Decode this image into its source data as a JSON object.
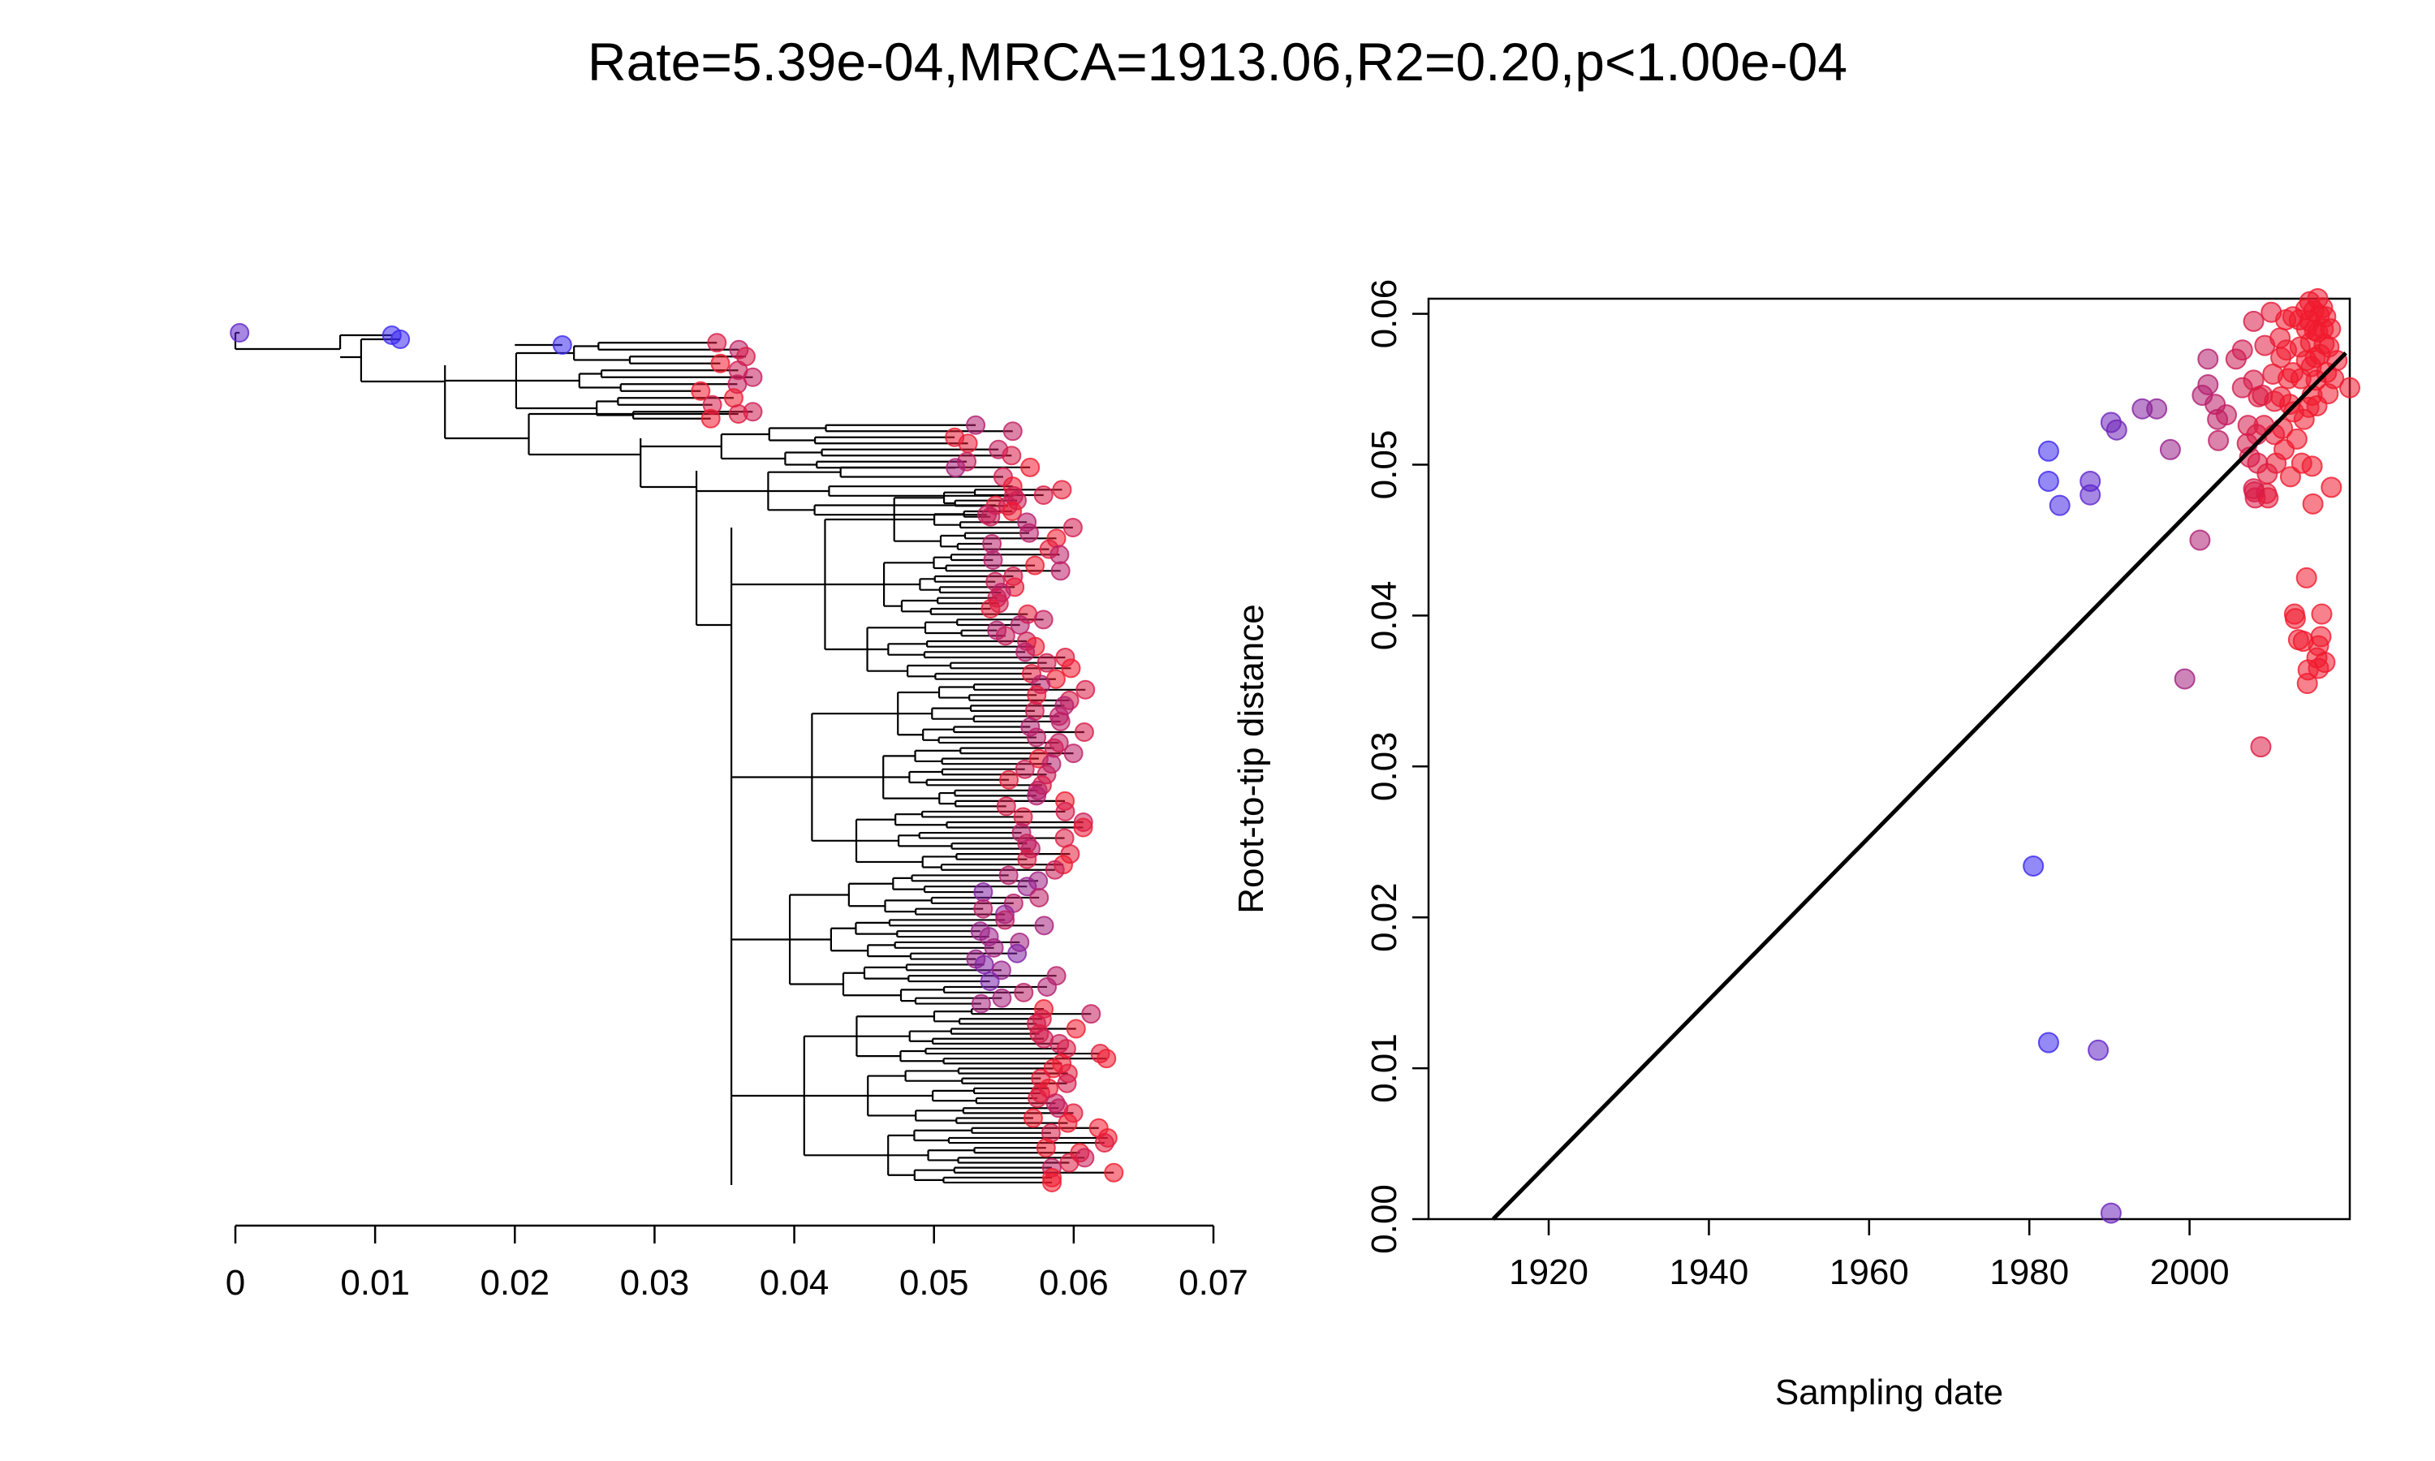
{
  "title": "Rate=5.39e-04,MRCA=1913.06,R2=0.20,p<1.00e-04",
  "colors": {
    "early": "#3a28f0",
    "late": "#f01a2e",
    "line": "#000000",
    "tree": "#000000"
  },
  "chart_data": [
    {
      "type": "tree",
      "axis": {
        "range": [
          0,
          0.07
        ],
        "ticks": [
          0,
          0.01,
          0.02,
          0.03,
          0.04,
          0.05,
          0.06,
          0.07
        ],
        "tick_labels": [
          "0",
          "0.01",
          "0.02",
          "0.03",
          "0.04",
          "0.05",
          "0.06",
          "0.07"
        ]
      },
      "tips_note": "tips colored blue (early sampling) to red (recent sampling)"
    },
    {
      "type": "scatter",
      "xlabel": "Sampling date",
      "ylabel": "Root-to-tip distance",
      "xlim": [
        1905,
        2020
      ],
      "ylim": [
        0,
        0.061
      ],
      "x_ticks": [
        1920,
        1940,
        1960,
        1980,
        2000
      ],
      "y_ticks": [
        0.0,
        0.01,
        0.02,
        0.03,
        0.04,
        0.05,
        0.06
      ],
      "y_tick_labels": [
        "0.00",
        "0.01",
        "0.02",
        "0.03",
        "0.04",
        "0.05",
        "0.06"
      ],
      "regression": {
        "rate": 0.000539,
        "mrca": 1913.06,
        "x": [
          1913.06,
          2019.5
        ],
        "y": [
          0.0,
          0.0574
        ]
      },
      "points": [
        [
          1980.5,
          0.0234
        ],
        [
          1982.4,
          0.0117
        ],
        [
          1988.6,
          0.0112
        ],
        [
          1990.2,
          0.0004
        ],
        [
          1982.4,
          0.0509
        ],
        [
          1982.4,
          0.0489
        ],
        [
          1983.8,
          0.0473
        ],
        [
          1987.6,
          0.0489
        ],
        [
          1987.6,
          0.048
        ],
        [
          1990.2,
          0.0528
        ],
        [
          1990.9,
          0.0523
        ],
        [
          1994.1,
          0.0537
        ],
        [
          1995.9,
          0.0537
        ],
        [
          1997.6,
          0.051
        ],
        [
          1999.4,
          0.0358
        ],
        [
          2001.3,
          0.045
        ],
        [
          2001.6,
          0.0546
        ],
        [
          2002.3,
          0.057
        ],
        [
          2002.3,
          0.0553
        ],
        [
          2003.2,
          0.054
        ],
        [
          2003.5,
          0.053
        ],
        [
          2003.6,
          0.0516
        ],
        [
          2004.6,
          0.0533
        ],
        [
          2005.8,
          0.057
        ],
        [
          2006.6,
          0.0576
        ],
        [
          2006.6,
          0.0551
        ],
        [
          2007.2,
          0.0514
        ],
        [
          2007.3,
          0.0526
        ],
        [
          2007.5,
          0.0505
        ],
        [
          2008.0,
          0.0595
        ],
        [
          2008.0,
          0.0556
        ],
        [
          2008.1,
          0.0482
        ],
        [
          2008.2,
          0.0478
        ],
        [
          2008.4,
          0.052
        ],
        [
          2008.5,
          0.0501
        ],
        [
          2008.9,
          0.0313
        ],
        [
          2009.1,
          0.0546
        ],
        [
          2009.3,
          0.0526
        ],
        [
          2009.4,
          0.0579
        ],
        [
          2009.6,
          0.0481
        ],
        [
          2009.8,
          0.0478
        ],
        [
          2010.2,
          0.0601
        ],
        [
          2010.4,
          0.056
        ],
        [
          2010.6,
          0.0542
        ],
        [
          2010.6,
          0.052
        ],
        [
          2010.8,
          0.0501
        ],
        [
          2011.3,
          0.0584
        ],
        [
          2011.4,
          0.0571
        ],
        [
          2011.4,
          0.0545
        ],
        [
          2011.6,
          0.0524
        ],
        [
          2011.8,
          0.051
        ],
        [
          2012.0,
          0.0596
        ],
        [
          2012.1,
          0.0576
        ],
        [
          2012.3,
          0.0557
        ],
        [
          2012.5,
          0.054
        ],
        [
          2012.6,
          0.0492
        ],
        [
          2012.9,
          0.0598
        ],
        [
          2012.9,
          0.0561
        ],
        [
          2013.0,
          0.0535
        ],
        [
          2013.1,
          0.0401
        ],
        [
          2013.2,
          0.0398
        ],
        [
          2013.4,
          0.0517
        ],
        [
          2013.6,
          0.0384
        ],
        [
          2013.7,
          0.0596
        ],
        [
          2013.8,
          0.0578
        ],
        [
          2013.9,
          0.0557
        ],
        [
          2014.0,
          0.0501
        ],
        [
          2014.2,
          0.0383
        ],
        [
          2014.3,
          0.053
        ],
        [
          2014.5,
          0.0603
        ],
        [
          2014.6,
          0.059
        ],
        [
          2014.6,
          0.0569
        ],
        [
          2014.6,
          0.0425
        ],
        [
          2014.7,
          0.0355
        ],
        [
          2014.8,
          0.0364
        ],
        [
          2014.9,
          0.0538
        ],
        [
          2015.0,
          0.0608
        ],
        [
          2015.0,
          0.0595
        ],
        [
          2015.1,
          0.0581
        ],
        [
          2015.2,
          0.0565
        ],
        [
          2015.3,
          0.0546
        ],
        [
          2015.3,
          0.0499
        ],
        [
          2015.4,
          0.0474
        ],
        [
          2015.5,
          0.0602
        ],
        [
          2015.6,
          0.0589
        ],
        [
          2015.7,
          0.0571
        ],
        [
          2015.8,
          0.0556
        ],
        [
          2015.9,
          0.0539
        ],
        [
          2015.9,
          0.0372
        ],
        [
          2016.0,
          0.061
        ],
        [
          2016.0,
          0.0588
        ],
        [
          2016.1,
          0.038
        ],
        [
          2016.1,
          0.0365
        ],
        [
          2016.2,
          0.0599
        ],
        [
          2016.3,
          0.0573
        ],
        [
          2016.4,
          0.0386
        ],
        [
          2016.5,
          0.0401
        ],
        [
          2016.6,
          0.0604
        ],
        [
          2016.7,
          0.059
        ],
        [
          2016.8,
          0.058
        ],
        [
          2016.9,
          0.0369
        ],
        [
          2017.0,
          0.0598
        ],
        [
          2017.1,
          0.0561
        ],
        [
          2017.3,
          0.0547
        ],
        [
          2017.4,
          0.0578
        ],
        [
          2017.6,
          0.059
        ],
        [
          2017.7,
          0.0485
        ],
        [
          2018.0,
          0.0557
        ],
        [
          2018.4,
          0.0569
        ],
        [
          2020.0,
          0.0551
        ],
        [
          2008.0,
          0.0484
        ],
        [
          2008.6,
          0.0545
        ],
        [
          2009.7,
          0.0494
        ]
      ]
    }
  ]
}
